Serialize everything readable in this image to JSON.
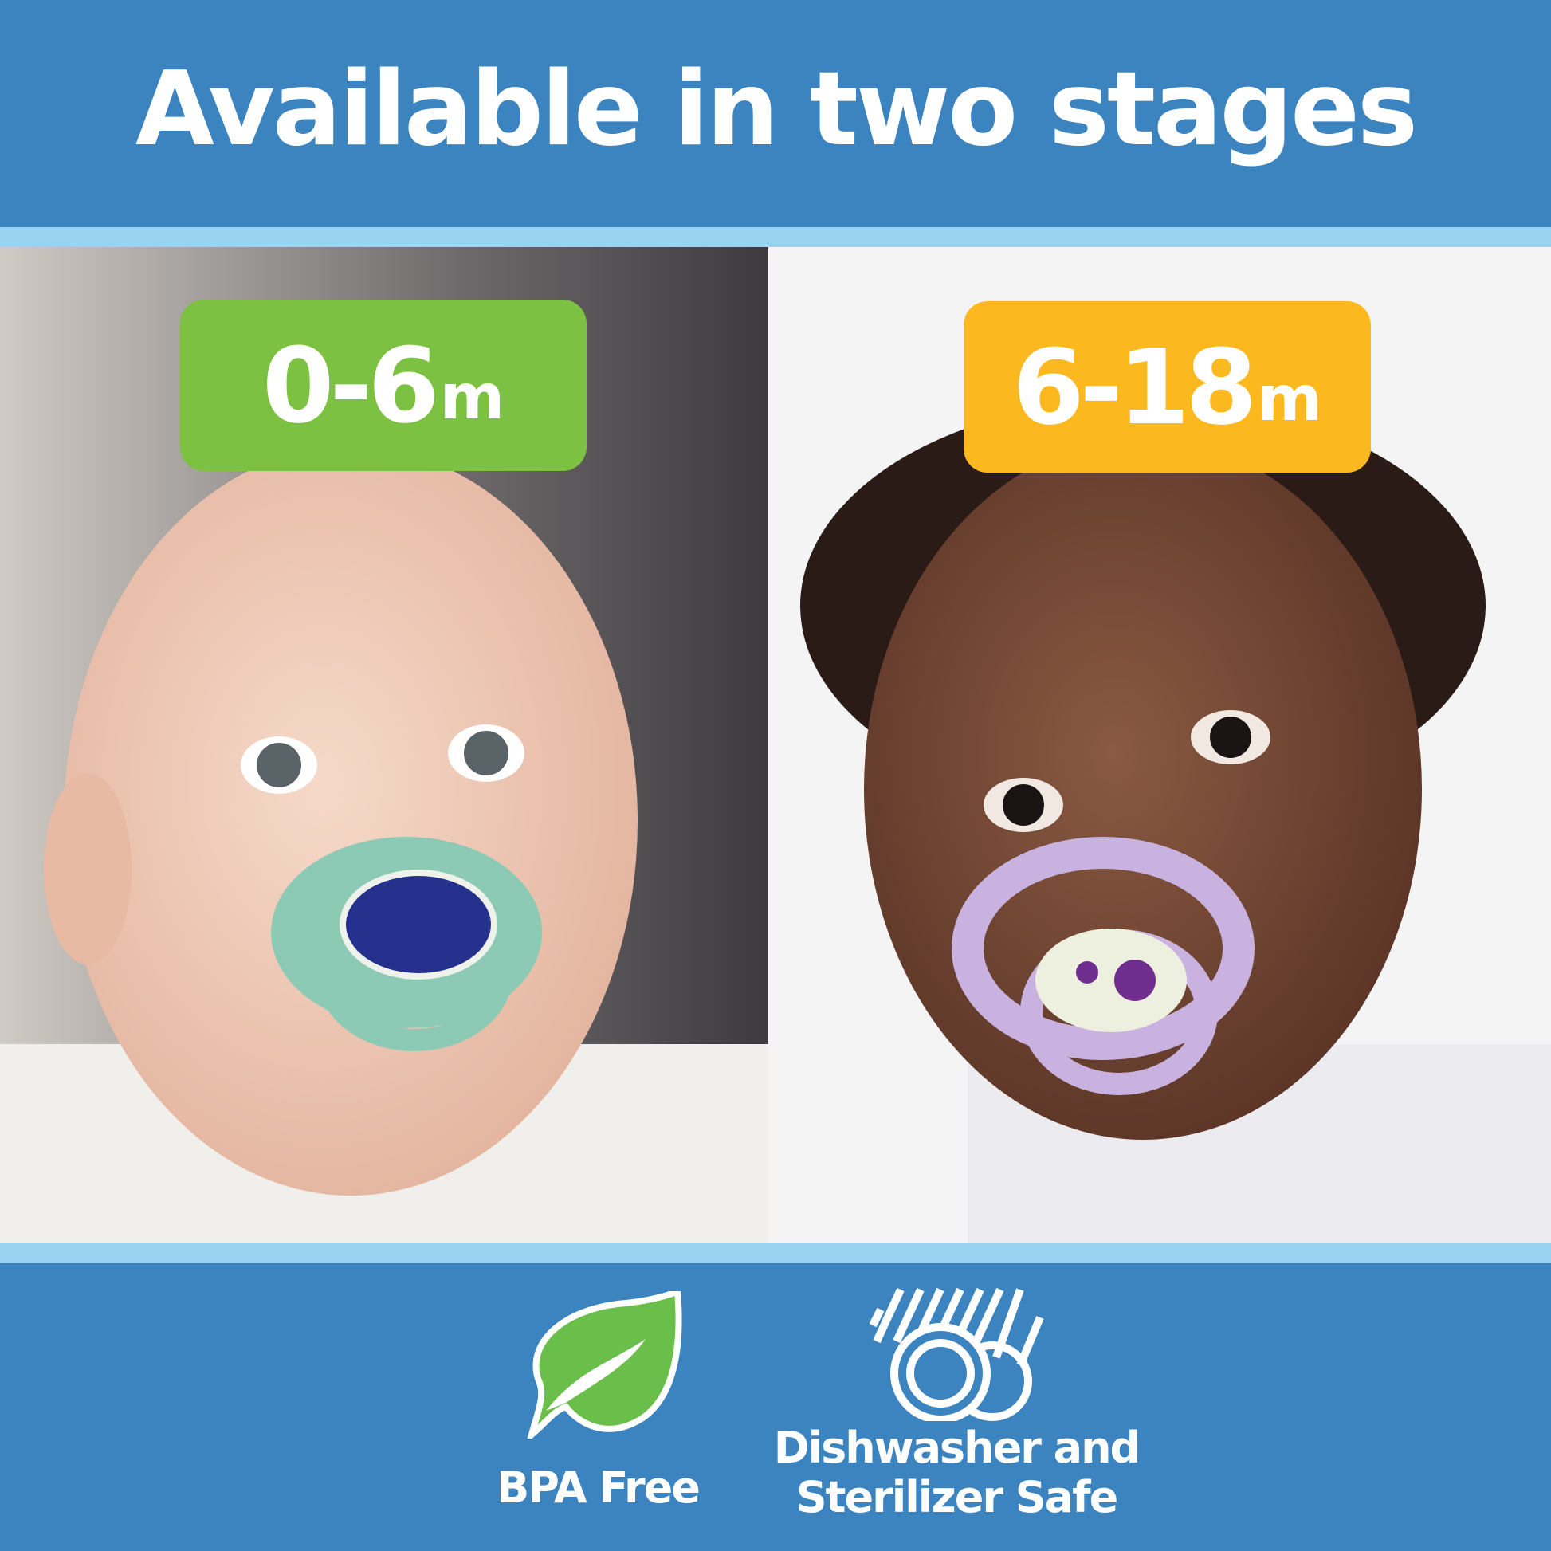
{
  "header": {
    "title": "Available in two stages"
  },
  "stages": [
    {
      "range": "0-6",
      "unit": "m",
      "color": "#7cc141"
    },
    {
      "range": "6-18",
      "unit": "m",
      "color": "#fbb91f"
    }
  ],
  "features": [
    {
      "icon": "leaf-icon",
      "label": "BPA Free"
    },
    {
      "icon": "dishwasher-icon",
      "label_line1": "Dishwasher and",
      "label_line2": "Sterilizer Safe"
    }
  ],
  "colors": {
    "primary_blue": "#3b84bf",
    "light_blue": "#9ad3f2",
    "leaf_green": "#6abf4b"
  }
}
